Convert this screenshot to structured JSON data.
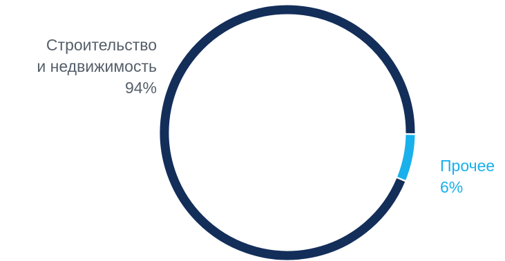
{
  "colors": {
    "construction": "#142e5a",
    "other": "#19b0ec",
    "background": "#ffffff"
  },
  "chart_data": {
    "type": "pie",
    "variant": "donut",
    "title": "",
    "slices": [
      {
        "key": "construction",
        "label_lines": [
          "Строительство",
          "и недвижимость"
        ],
        "value": 94,
        "value_label": "94%",
        "color": "#142e5a"
      },
      {
        "key": "other",
        "label_lines": [
          "Прочее"
        ],
        "value": 6,
        "value_label": "6%",
        "color": "#19b0ec"
      }
    ]
  }
}
